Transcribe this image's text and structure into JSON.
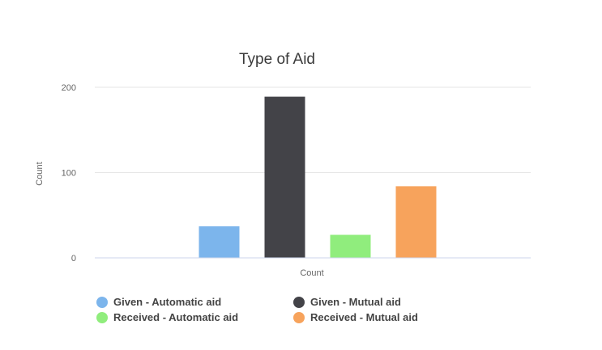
{
  "chart_data": {
    "type": "bar",
    "title": "Type of Aid",
    "xlabel": "Count",
    "ylabel": "Count",
    "categories": [
      "Count"
    ],
    "ylim": [
      0,
      200
    ],
    "yticks": [
      0,
      100,
      200
    ],
    "grid": true,
    "legend_position": "bottom",
    "series": [
      {
        "name": "Given - Automatic aid",
        "values": [
          37
        ],
        "color": "#7cb5ec"
      },
      {
        "name": "Given - Mutual aid",
        "values": [
          189
        ],
        "color": "#434348"
      },
      {
        "name": "Received - Automatic aid",
        "values": [
          27
        ],
        "color": "#90ed7d"
      },
      {
        "name": "Received - Mutual aid",
        "values": [
          84
        ],
        "color": "#f7a35c"
      }
    ]
  }
}
